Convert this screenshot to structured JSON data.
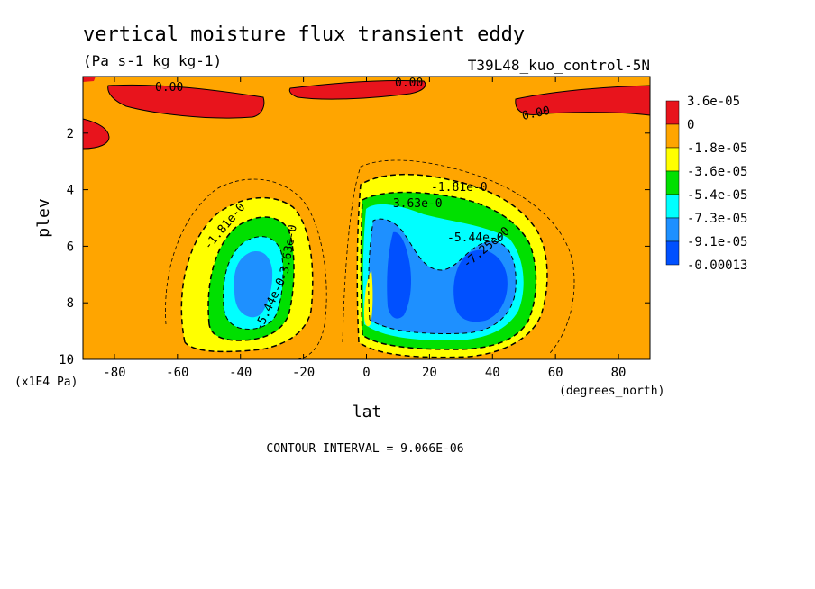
{
  "chart_data": {
    "type": "contour",
    "title": "vertical moisture flux transient eddy",
    "units": "(Pa s-1 kg kg-1)",
    "run_label": "T39L48_kuo_control-5N",
    "xlabel": "lat",
    "x_units": "(degrees_north)",
    "ylabel": "plev",
    "y_units": "(x1E4 Pa)",
    "xlim": [
      -90,
      90
    ],
    "ylim": [
      10,
      0
    ],
    "x_ticks": [
      -80,
      -60,
      -40,
      -20,
      0,
      20,
      40,
      60,
      80
    ],
    "y_ticks": [
      2,
      4,
      6,
      8,
      10
    ],
    "contour_interval_text": "CONTOUR INTERVAL = 9.066E-06",
    "contour_labels": [
      "0.00",
      "0.00",
      "0.00",
      "-1.81e-0",
      "-1.81e-0",
      "-3.63e-0",
      "-5.44e-0",
      "-7.25e-0",
      "-5.44e-0",
      "-3.63e-0"
    ],
    "legend": {
      "labels": [
        "3.6e-05",
        "0",
        "-1.8e-05",
        "-3.6e-05",
        "-5.4e-05",
        "-7.3e-05",
        "-9.1e-05",
        "-0.00013"
      ],
      "colors": [
        "#e8141c",
        "#ffa500",
        "#ffff00",
        "#00e000",
        "#00ffff",
        "#1e90ff",
        "#0050ff"
      ]
    },
    "features": [
      {
        "kind": "positive",
        "lat": [
          -80,
          -35
        ],
        "plev": [
          0.2,
          1.3
        ]
      },
      {
        "kind": "positive",
        "lat": [
          -22,
          10
        ],
        "plev": [
          0.1,
          0.6
        ]
      },
      {
        "kind": "positive",
        "lat": [
          50,
          88
        ],
        "plev": [
          0.2,
          1.3
        ]
      },
      {
        "kind": "positive",
        "lat": [
          -90,
          -85
        ],
        "plev": [
          1.5,
          2.6
        ]
      },
      {
        "kind": "minimum",
        "lat": -33,
        "plev": 7.0
      },
      {
        "kind": "minimum",
        "lat": 10,
        "plev": 6.5
      },
      {
        "kind": "minimum",
        "lat": 35,
        "plev": 7.0
      }
    ]
  }
}
